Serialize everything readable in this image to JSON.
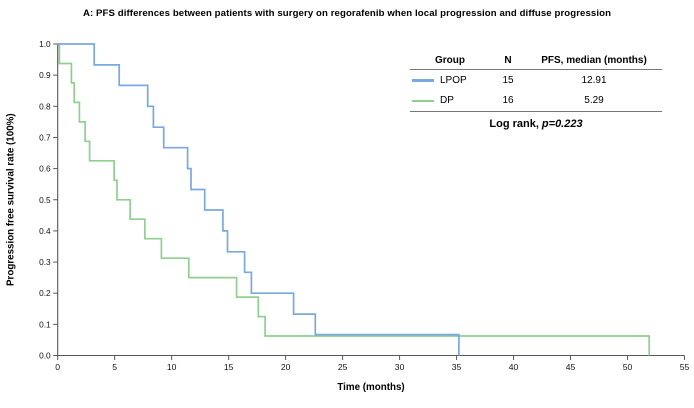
{
  "title": "A: PFS differences between patients with surgery on regorafenib when local progression and diffuse progression",
  "colors": {
    "lpop_line": "#7aa8e0",
    "dp_line": "#8fd08f",
    "axis": "#58585a",
    "table_rule": "#777777"
  },
  "stats_table": {
    "headers": {
      "group": "Group",
      "n": "N",
      "median": "PFS, median (months)"
    },
    "rows": [
      {
        "group": "LPOP",
        "n": "15",
        "median": "12.91"
      },
      {
        "group": "DP",
        "n": "16",
        "median": "5.29"
      }
    ],
    "footer_prefix": "Log rank,",
    "footer_pvalue": "p=0.223"
  },
  "chart_data": {
    "type": "line",
    "subtype": "kaplan-meier-step",
    "title": "A: PFS differences between patients with surgery on regorafenib when local progression and diffuse progression",
    "xlabel": "Time (months)",
    "ylabel": "Progression free survival rate (100%)",
    "xlim": [
      0,
      55
    ],
    "ylim": [
      0.0,
      1.0
    ],
    "x_ticks": [
      0,
      5,
      10,
      15,
      20,
      25,
      30,
      35,
      40,
      45,
      50,
      55
    ],
    "y_ticks": [
      0.0,
      0.1,
      0.2,
      0.3,
      0.4,
      0.5,
      0.6,
      0.7,
      0.8,
      0.9,
      1.0
    ],
    "grid": false,
    "legend_position": "table-top-right",
    "log_rank_p": "0.223",
    "series": [
      {
        "name": "LPOP",
        "n": 15,
        "median_months": 12.91,
        "color": "#7aa8e0",
        "steps": [
          [
            0,
            1.0
          ],
          [
            3.2,
            0.933
          ],
          [
            5.4,
            0.867
          ],
          [
            7.9,
            0.8
          ],
          [
            8.4,
            0.733
          ],
          [
            9.3,
            0.667
          ],
          [
            11.4,
            0.6
          ],
          [
            11.7,
            0.533
          ],
          [
            12.9,
            0.467
          ],
          [
            14.5,
            0.4
          ],
          [
            14.9,
            0.333
          ],
          [
            16.4,
            0.267
          ],
          [
            17.0,
            0.2
          ],
          [
            20.7,
            0.133
          ],
          [
            22.6,
            0.067
          ],
          [
            35.2,
            0.0
          ]
        ]
      },
      {
        "name": "DP",
        "n": 16,
        "median_months": 5.29,
        "color": "#8fd08f",
        "steps": [
          [
            0,
            1.0
          ],
          [
            0.15,
            0.9375
          ],
          [
            1.2,
            0.875
          ],
          [
            1.45,
            0.8125
          ],
          [
            1.9,
            0.75
          ],
          [
            2.4,
            0.6875
          ],
          [
            2.8,
            0.625
          ],
          [
            4.95,
            0.5625
          ],
          [
            5.2,
            0.5
          ],
          [
            6.35,
            0.4375
          ],
          [
            7.65,
            0.375
          ],
          [
            9.1,
            0.3125
          ],
          [
            11.5,
            0.25
          ],
          [
            15.7,
            0.1875
          ],
          [
            17.6,
            0.125
          ],
          [
            18.2,
            0.0625
          ],
          [
            51.9,
            0.0
          ]
        ]
      }
    ]
  }
}
